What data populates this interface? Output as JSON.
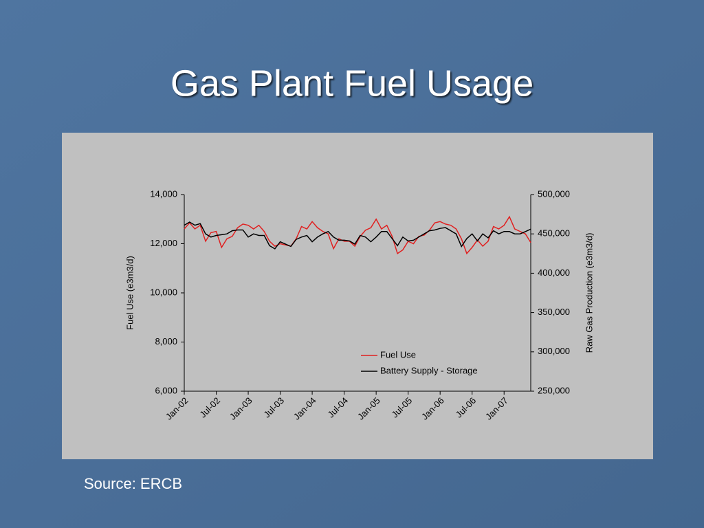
{
  "chart_data": {
    "type": "line",
    "title": "Gas Plant Fuel Usage",
    "source": "Source: ERCB",
    "ylabel": "Fuel Use (e3m3/d)",
    "y2label": "Raw Gas Production (e3m3/d)",
    "categories": [
      "Jan-02",
      null,
      null,
      null,
      null,
      null,
      "Jul-02",
      null,
      null,
      null,
      null,
      null,
      "Jan-03",
      null,
      null,
      null,
      null,
      null,
      "Jul-03",
      null,
      null,
      null,
      null,
      null,
      "Jan-04",
      null,
      null,
      null,
      null,
      null,
      "Jul-04",
      null,
      null,
      null,
      null,
      null,
      "Jan-05",
      null,
      null,
      null,
      null,
      null,
      "Jul-05",
      null,
      null,
      null,
      null,
      null,
      "Jan-06",
      null,
      null,
      null,
      null,
      null,
      "Jul-06",
      null,
      null,
      null,
      null,
      null,
      "Jan-07",
      null,
      null,
      null,
      null,
      null
    ],
    "ylim": [
      6000,
      14000
    ],
    "yticks": [
      {
        "value": 6000,
        "label": "6,000"
      },
      {
        "value": 8000,
        "label": "8,000"
      },
      {
        "value": 10000,
        "label": "10,000"
      },
      {
        "value": 12000,
        "label": "12,000"
      },
      {
        "value": 14000,
        "label": "14,000"
      }
    ],
    "y2lim": [
      250000,
      500000
    ],
    "y2ticks": [
      {
        "value": 250000,
        "label": "250,000"
      },
      {
        "value": 300000,
        "label": "300,000"
      },
      {
        "value": 350000,
        "label": "350,000"
      },
      {
        "value": 400000,
        "label": "400,000"
      },
      {
        "value": 450000,
        "label": "450,000"
      },
      {
        "value": 500000,
        "label": "500,000"
      }
    ],
    "legend": "bottom-right",
    "series": [
      {
        "name": "Fuel Use",
        "color": "#e02020",
        "values": [
          12600,
          12850,
          12600,
          12750,
          12100,
          12450,
          12500,
          11850,
          12200,
          12300,
          12650,
          12800,
          12750,
          12600,
          12750,
          12500,
          12100,
          11900,
          12000,
          11950,
          11900,
          12200,
          12700,
          12600,
          12900,
          12650,
          12500,
          12400,
          11800,
          12200,
          12100,
          12100,
          11900,
          12300,
          12550,
          12650,
          13000,
          12600,
          12750,
          12300,
          11600,
          11750,
          12100,
          12000,
          12300,
          12350,
          12550,
          12850,
          12900,
          12800,
          12750,
          12600,
          12200,
          11600,
          11850,
          12150,
          11900,
          12100,
          12700,
          12600,
          12750,
          13100,
          12600,
          12500,
          12400,
          12050
        ]
      },
      {
        "name": "Battery Supply - Storage",
        "color": "#000000",
        "axis": "y2",
        "values": [
          461000,
          465000,
          461000,
          463000,
          450000,
          446000,
          448000,
          449000,
          450000,
          454000,
          455000,
          455000,
          446000,
          450000,
          448000,
          448000,
          435000,
          431000,
          440000,
          437000,
          434000,
          443000,
          446000,
          448000,
          440000,
          446000,
          450000,
          453000,
          446000,
          442000,
          442000,
          441000,
          437000,
          448000,
          446000,
          440000,
          446000,
          453000,
          453000,
          444000,
          435000,
          446000,
          441000,
          442000,
          446000,
          450000,
          454000,
          455000,
          457000,
          458000,
          454000,
          450000,
          434000,
          444000,
          450000,
          441000,
          450000,
          445000,
          454000,
          450000,
          453000,
          453000,
          450000,
          450000,
          453000,
          456000
        ]
      }
    ]
  }
}
